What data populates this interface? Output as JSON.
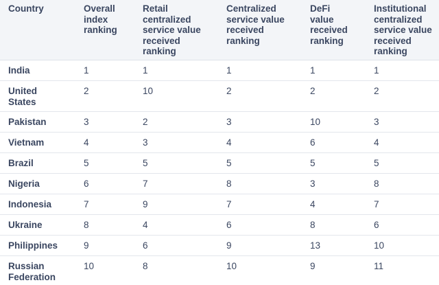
{
  "table": {
    "headers": [
      "Country",
      "Overall\nindex\nranking",
      "Retail\ncentralized\nservice value\nreceived\nranking",
      "Centralized\nservice value\nreceived\nranking",
      "DeFi\nvalue\nreceived\nranking",
      "Institutional\ncentralized\nservice value\nreceived\nranking"
    ],
    "rows": [
      {
        "country": "India",
        "overall": "1",
        "retail": "1",
        "centralized": "1",
        "defi": "1",
        "institutional": "1"
      },
      {
        "country": "United\nStates",
        "overall": "2",
        "retail": "10",
        "centralized": "2",
        "defi": "2",
        "institutional": "2"
      },
      {
        "country": "Pakistan",
        "overall": "3",
        "retail": "2",
        "centralized": "3",
        "defi": "10",
        "institutional": "3"
      },
      {
        "country": "Vietnam",
        "overall": "4",
        "retail": "3",
        "centralized": "4",
        "defi": "6",
        "institutional": "4"
      },
      {
        "country": "Brazil",
        "overall": "5",
        "retail": "5",
        "centralized": "5",
        "defi": "5",
        "institutional": "5"
      },
      {
        "country": "Nigeria",
        "overall": "6",
        "retail": "7",
        "centralized": "8",
        "defi": "3",
        "institutional": "8"
      },
      {
        "country": "Indonesia",
        "overall": "7",
        "retail": "9",
        "centralized": "7",
        "defi": "4",
        "institutional": "7"
      },
      {
        "country": "Ukraine",
        "overall": "8",
        "retail": "4",
        "centralized": "6",
        "defi": "8",
        "institutional": "6"
      },
      {
        "country": "Philippines",
        "overall": "9",
        "retail": "6",
        "centralized": "9",
        "defi": "13",
        "institutional": "10"
      },
      {
        "country": "Russian\nFederation",
        "overall": "10",
        "retail": "8",
        "centralized": "10",
        "defi": "9",
        "institutional": "11"
      }
    ]
  }
}
